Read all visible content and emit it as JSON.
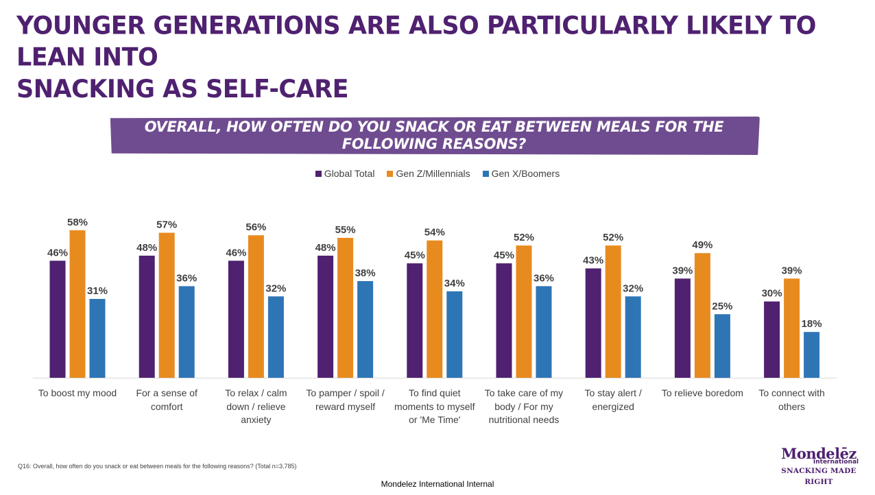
{
  "page": {
    "title_lines": [
      "YOUNGER GENERATIONS ARE ALSO PARTICULARLY LIKELY TO LEAN INTO",
      "SNACKING AS SELF-CARE"
    ],
    "footnote": "Q16: Overall, how often do you snack or eat between meals for the following reasons? (Total n=3,785)",
    "internal_label": "Mondelez International Internal",
    "logo": {
      "name": "Mondelēz",
      "sub": "International",
      "tagline": "SNACKING MADE RIGHT"
    }
  },
  "colors": {
    "title": "#4f2170",
    "banner": "#6f4c8f",
    "global": "#4f2170",
    "genz": "#e88b1f",
    "genx": "#2e75b6"
  },
  "chart_data": {
    "type": "bar",
    "title": "OVERALL, HOW OFTEN DO YOU SNACK OR EAT BETWEEN MEALS FOR THE FOLLOWING REASONS?",
    "categories": [
      "To boost my mood",
      "For a sense of comfort",
      "To relax / calm down / relieve anxiety",
      "To pamper / spoil / reward myself",
      "To find quiet moments to myself or 'Me Time'",
      "To take care of my body / For my nutritional needs",
      "To stay alert / energized",
      "To relieve boredom",
      "To connect with others"
    ],
    "category_lines": [
      [
        "To boost my mood"
      ],
      [
        "For a sense of",
        "comfort"
      ],
      [
        "To relax / calm",
        "down / relieve",
        "anxiety"
      ],
      [
        "To pamper / spoil /",
        "reward myself"
      ],
      [
        "To find quiet",
        "moments to myself",
        "or 'Me Time'"
      ],
      [
        "To take care of my",
        "body / For my",
        "nutritional needs"
      ],
      [
        "To stay alert /",
        "energized"
      ],
      [
        "To relieve boredom"
      ],
      [
        "To connect with",
        "others"
      ]
    ],
    "series": [
      {
        "name": "Global Total",
        "color": "#4f2170",
        "values": [
          46,
          48,
          46,
          48,
          45,
          45,
          43,
          39,
          30
        ]
      },
      {
        "name": "Gen Z/Millennials",
        "color": "#e88b1f",
        "values": [
          58,
          57,
          56,
          55,
          54,
          52,
          52,
          49,
          39
        ]
      },
      {
        "name": "Gen X/Boomers",
        "color": "#2e75b6",
        "values": [
          31,
          36,
          32,
          38,
          34,
          36,
          32,
          25,
          18
        ]
      }
    ],
    "value_suffix": "%",
    "ylim": [
      0,
      60
    ],
    "legend_position": "top-center",
    "grid": false
  }
}
